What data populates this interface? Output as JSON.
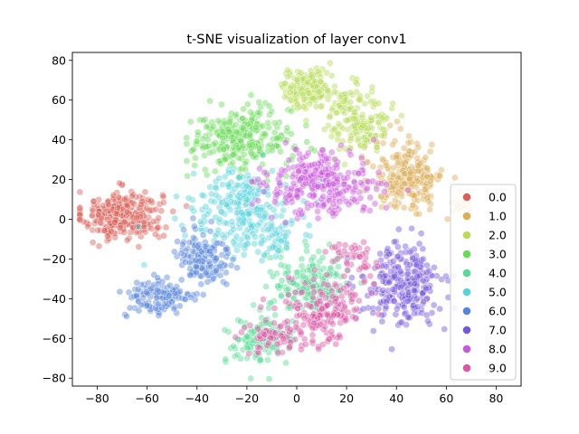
{
  "chart_data": {
    "type": "scatter",
    "title": "t-SNE visualization of layer conv1",
    "xlabel": "",
    "ylabel": "",
    "xlim": [
      -90,
      90
    ],
    "ylim": [
      -84,
      84
    ],
    "xticks": [
      -80,
      -60,
      -40,
      -20,
      0,
      20,
      40,
      60,
      80
    ],
    "yticks": [
      -80,
      -60,
      -40,
      -20,
      0,
      20,
      40,
      60,
      80
    ],
    "grid": false,
    "legend_position": "right",
    "point_alpha": 0.45,
    "series": [
      {
        "name": "0.0",
        "color": "#db5f57",
        "clusters": [
          {
            "center": [
              -70,
              2
            ],
            "spread": [
              8,
              6
            ],
            "count": 300
          }
        ]
      },
      {
        "name": "1.0",
        "color": "#dbae57",
        "clusters": [
          {
            "center": [
              45,
              22
            ],
            "spread": [
              7,
              9
            ],
            "count": 230
          },
          {
            "center": [
              65,
              5
            ],
            "spread": [
              4,
              3
            ],
            "count": 20
          }
        ]
      },
      {
        "name": "2.0",
        "color": "#b9db57",
        "clusters": [
          {
            "center": [
              5,
              66
            ],
            "spread": [
              6,
              5
            ],
            "count": 140
          },
          {
            "center": [
              25,
              50
            ],
            "spread": [
              6,
              8
            ],
            "count": 150
          }
        ]
      },
      {
        "name": "3.0",
        "color": "#69db57",
        "clusters": [
          {
            "center": [
              -22,
              40
            ],
            "spread": [
              10,
              8
            ],
            "count": 280
          }
        ]
      },
      {
        "name": "4.0",
        "color": "#57db94",
        "clusters": [
          {
            "center": [
              5,
              -32
            ],
            "spread": [
              8,
              8
            ],
            "count": 180
          },
          {
            "center": [
              -15,
              -62
            ],
            "spread": [
              7,
              6
            ],
            "count": 110
          }
        ]
      },
      {
        "name": "5.0",
        "color": "#57d3db",
        "clusters": [
          {
            "center": [
              -22,
              5
            ],
            "spread": [
              10,
              10
            ],
            "count": 230
          },
          {
            "center": [
              -8,
              -10
            ],
            "spread": [
              5,
              5
            ],
            "count": 40
          }
        ]
      },
      {
        "name": "6.0",
        "color": "#5784db",
        "clusters": [
          {
            "center": [
              -38,
              -20
            ],
            "spread": [
              6,
              8
            ],
            "count": 140
          },
          {
            "center": [
              -55,
              -40
            ],
            "spread": [
              7,
              5
            ],
            "count": 120
          }
        ]
      },
      {
        "name": "7.0",
        "color": "#7557db",
        "clusters": [
          {
            "center": [
              42,
              -33
            ],
            "spread": [
              8,
              10
            ],
            "count": 260
          }
        ]
      },
      {
        "name": "8.0",
        "color": "#c957db",
        "clusters": [
          {
            "center": [
              10,
              18
            ],
            "spread": [
              11,
              8
            ],
            "count": 280
          }
        ]
      },
      {
        "name": "9.0",
        "color": "#db57a4",
        "clusters": [
          {
            "center": [
              12,
              -45
            ],
            "spread": [
              8,
              8
            ],
            "count": 160
          },
          {
            "center": [
              -8,
              -58
            ],
            "spread": [
              8,
              5
            ],
            "count": 70
          },
          {
            "center": [
              22,
              -20
            ],
            "spread": [
              5,
              6
            ],
            "count": 40
          }
        ]
      }
    ]
  }
}
